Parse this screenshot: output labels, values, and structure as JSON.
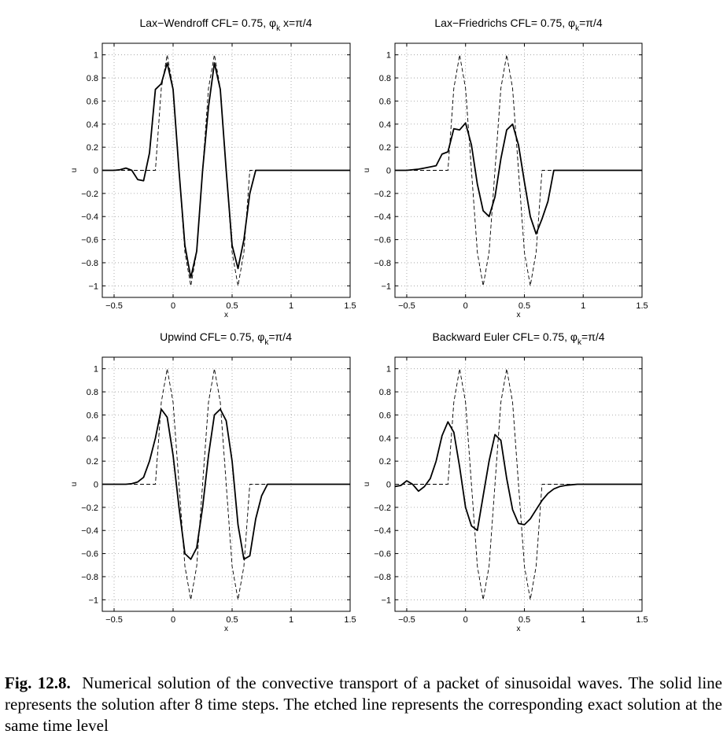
{
  "chart_data": [
    {
      "type": "line",
      "title": "Lax−Wendroff CFL=  0.75, φ",
      "title_sub": "k",
      "title_end": " x=π/4",
      "xlabel": "x",
      "ylabel": "u",
      "xlim": [
        -0.6,
        1.5
      ],
      "ylim": [
        -1.1,
        1.1
      ],
      "xticks": [
        -0.5,
        0,
        0.5,
        1,
        1.5
      ],
      "xtick_labels": [
        "−0.5",
        "0",
        "0.5",
        "1",
        "1.5"
      ],
      "yticks": [
        1,
        0.8,
        0.6,
        0.4,
        0.2,
        0,
        -0.2,
        -0.4,
        -0.6,
        -0.8,
        -1
      ],
      "ytick_labels": [
        "1",
        "0.8",
        "0.6",
        "0.4",
        "0.2",
        "0",
        "−0.2",
        "−0.4",
        "−0.6",
        "−0.8",
        "−1"
      ],
      "grid": true,
      "series": [
        {
          "style": "solid",
          "x": [
            -0.6,
            -0.55,
            -0.5,
            -0.45,
            -0.4,
            -0.35,
            -0.3,
            -0.25,
            -0.2,
            -0.15,
            -0.1,
            -0.05,
            0,
            0.05,
            0.1,
            0.15,
            0.2,
            0.25,
            0.3,
            0.35,
            0.4,
            0.45,
            0.5,
            0.55,
            0.6,
            0.65,
            0.7,
            0.75,
            0.8,
            0.85,
            0.9,
            1.0,
            1.1,
            1.2,
            1.3,
            1.4,
            1.5
          ],
          "y": [
            0,
            0,
            0,
            0.005,
            0.02,
            0,
            -0.08,
            -0.09,
            0.15,
            0.7,
            0.75,
            0.93,
            0.7,
            0,
            -0.65,
            -0.93,
            -0.7,
            0,
            0.55,
            0.93,
            0.7,
            0,
            -0.65,
            -0.85,
            -0.6,
            -0.2,
            0,
            0,
            0,
            0,
            0,
            0,
            0,
            0,
            0,
            0,
            0
          ]
        },
        {
          "style": "dashed",
          "x": [
            -0.6,
            -0.2,
            -0.15,
            -0.1,
            -0.05,
            0,
            0.05,
            0.1,
            0.15,
            0.2,
            0.25,
            0.3,
            0.35,
            0.4,
            0.45,
            0.5,
            0.55,
            0.6,
            0.65,
            0.7,
            0.75,
            0.8,
            1.5
          ],
          "y": [
            0,
            0,
            0,
            0.71,
            1,
            0.71,
            0,
            -0.71,
            -1,
            -0.71,
            0,
            0.71,
            1,
            0.71,
            0,
            -0.71,
            -1,
            -0.71,
            0,
            0,
            0,
            0,
            0
          ]
        }
      ]
    },
    {
      "type": "line",
      "title": "Lax−Friedrichs CFL=  0.75, φ",
      "title_sub": "k",
      "title_end": "=π/4",
      "xlabel": "x",
      "ylabel": "u",
      "xlim": [
        -0.6,
        1.5
      ],
      "ylim": [
        -1.1,
        1.1
      ],
      "xticks": [
        -0.5,
        0,
        0.5,
        1,
        1.5
      ],
      "xtick_labels": [
        "−0.5",
        "0",
        "0.5",
        "1",
        "1.5"
      ],
      "yticks": [
        1,
        0.8,
        0.6,
        0.4,
        0.2,
        0,
        -0.2,
        -0.4,
        -0.6,
        -0.8,
        -1
      ],
      "ytick_labels": [
        "1",
        "0.8",
        "0.6",
        "0.4",
        "0.2",
        "0",
        "−0.2",
        "−0.4",
        "−0.6",
        "−0.8",
        "−1"
      ],
      "grid": true,
      "series": [
        {
          "style": "solid",
          "x": [
            -0.6,
            -0.5,
            -0.4,
            -0.35,
            -0.3,
            -0.25,
            -0.2,
            -0.15,
            -0.1,
            -0.05,
            0,
            0.05,
            0.1,
            0.15,
            0.2,
            0.25,
            0.3,
            0.35,
            0.4,
            0.45,
            0.5,
            0.55,
            0.6,
            0.65,
            0.7,
            0.75,
            0.8,
            0.85,
            0.9,
            1.0,
            1.2,
            1.5
          ],
          "y": [
            0,
            0,
            0.01,
            0.02,
            0.03,
            0.04,
            0.14,
            0.16,
            0.36,
            0.35,
            0.41,
            0.22,
            -0.12,
            -0.35,
            -0.4,
            -0.23,
            0.1,
            0.35,
            0.4,
            0.22,
            -0.1,
            -0.4,
            -0.55,
            -0.42,
            -0.27,
            0,
            0,
            0,
            0,
            0,
            0,
            0
          ]
        },
        {
          "style": "dashed",
          "x": [
            -0.6,
            -0.2,
            -0.15,
            -0.1,
            -0.05,
            0,
            0.05,
            0.1,
            0.15,
            0.2,
            0.25,
            0.3,
            0.35,
            0.4,
            0.45,
            0.5,
            0.55,
            0.6,
            0.65,
            0.7,
            0.75,
            0.8,
            1.5
          ],
          "y": [
            0,
            0,
            0,
            0.71,
            1,
            0.71,
            0,
            -0.71,
            -1,
            -0.71,
            0,
            0.71,
            1,
            0.71,
            0,
            -0.71,
            -1,
            -0.71,
            0,
            0,
            0,
            0,
            0
          ]
        }
      ]
    },
    {
      "type": "line",
      "title": "Upwind CFL=  0.75, φ",
      "title_sub": "k",
      "title_end": "=π/4",
      "xlabel": "x",
      "ylabel": "u",
      "xlim": [
        -0.6,
        1.5
      ],
      "ylim": [
        -1.1,
        1.1
      ],
      "xticks": [
        -0.5,
        0,
        0.5,
        1,
        1.5
      ],
      "xtick_labels": [
        "−0.5",
        "0",
        "0.5",
        "1",
        "1.5"
      ],
      "yticks": [
        1,
        0.8,
        0.6,
        0.4,
        0.2,
        0,
        -0.2,
        -0.4,
        -0.6,
        -0.8,
        -1
      ],
      "ytick_labels": [
        "1",
        "0.8",
        "0.6",
        "0.4",
        "0.2",
        "0",
        "−0.2",
        "−0.4",
        "−0.6",
        "−0.8",
        "−1"
      ],
      "grid": true,
      "series": [
        {
          "style": "solid",
          "x": [
            -0.6,
            -0.4,
            -0.35,
            -0.3,
            -0.25,
            -0.2,
            -0.15,
            -0.1,
            -0.05,
            0,
            0.05,
            0.1,
            0.15,
            0.2,
            0.25,
            0.3,
            0.35,
            0.4,
            0.45,
            0.5,
            0.55,
            0.6,
            0.65,
            0.7,
            0.75,
            0.8,
            0.85,
            0.9,
            1.0,
            1.5
          ],
          "y": [
            0,
            0,
            0.005,
            0.02,
            0.06,
            0.2,
            0.4,
            0.65,
            0.58,
            0.25,
            -0.2,
            -0.6,
            -0.65,
            -0.55,
            -0.2,
            0.25,
            0.6,
            0.65,
            0.55,
            0.2,
            -0.35,
            -0.65,
            -0.62,
            -0.3,
            -0.1,
            0,
            0,
            0,
            0,
            0
          ]
        },
        {
          "style": "dashed",
          "x": [
            -0.6,
            -0.2,
            -0.15,
            -0.1,
            -0.05,
            0,
            0.05,
            0.1,
            0.15,
            0.2,
            0.25,
            0.3,
            0.35,
            0.4,
            0.45,
            0.5,
            0.55,
            0.6,
            0.65,
            0.7,
            0.75,
            0.8,
            1.5
          ],
          "y": [
            0,
            0,
            0,
            0.71,
            1,
            0.71,
            0,
            -0.71,
            -1,
            -0.71,
            0,
            0.71,
            1,
            0.71,
            0,
            -0.71,
            -1,
            -0.71,
            0,
            0,
            0,
            0,
            0
          ]
        }
      ]
    },
    {
      "type": "line",
      "title": "Backward Euler CFL=  0.75, φ",
      "title_sub": "k",
      "title_end": "=π/4",
      "xlabel": "x",
      "ylabel": "u",
      "xlim": [
        -0.6,
        1.5
      ],
      "ylim": [
        -1.1,
        1.1
      ],
      "xticks": [
        -0.5,
        0,
        0.5,
        1,
        1.5
      ],
      "xtick_labels": [
        "−0.5",
        "0",
        "0.5",
        "1",
        "1.5"
      ],
      "yticks": [
        1,
        0.8,
        0.6,
        0.4,
        0.2,
        0,
        -0.2,
        -0.4,
        -0.6,
        -0.8,
        -1
      ],
      "ytick_labels": [
        "1",
        "0.8",
        "0.6",
        "0.4",
        "0.2",
        "0",
        "−0.2",
        "−0.4",
        "−0.6",
        "−0.8",
        "−1"
      ],
      "grid": true,
      "series": [
        {
          "style": "solid",
          "x": [
            -0.6,
            -0.55,
            -0.5,
            -0.45,
            -0.4,
            -0.35,
            -0.3,
            -0.25,
            -0.2,
            -0.15,
            -0.1,
            -0.05,
            0,
            0.05,
            0.1,
            0.15,
            0.2,
            0.25,
            0.3,
            0.35,
            0.4,
            0.45,
            0.5,
            0.55,
            0.6,
            0.65,
            0.7,
            0.75,
            0.8,
            0.85,
            0.9,
            0.95,
            1.0,
            1.05,
            1.1,
            1.2,
            1.3,
            1.5
          ],
          "y": [
            -0.02,
            -0.01,
            0.03,
            0,
            -0.06,
            -0.02,
            0.05,
            0.2,
            0.42,
            0.54,
            0.45,
            0.15,
            -0.2,
            -0.36,
            -0.4,
            -0.1,
            0.2,
            0.43,
            0.38,
            0.05,
            -0.22,
            -0.34,
            -0.35,
            -0.3,
            -0.22,
            -0.14,
            -0.08,
            -0.04,
            -0.02,
            -0.01,
            -0.005,
            0,
            0,
            0,
            0,
            0,
            0,
            0
          ]
        },
        {
          "style": "dashed",
          "x": [
            -0.6,
            -0.2,
            -0.15,
            -0.1,
            -0.05,
            0,
            0.05,
            0.1,
            0.15,
            0.2,
            0.25,
            0.3,
            0.35,
            0.4,
            0.45,
            0.5,
            0.55,
            0.6,
            0.65,
            0.7,
            0.75,
            0.8,
            1.5
          ],
          "y": [
            0,
            0,
            0,
            0.71,
            1,
            0.71,
            0,
            -0.71,
            -1,
            -0.71,
            0,
            0.71,
            1,
            0.71,
            0,
            -0.71,
            -1,
            -0.71,
            0,
            0,
            0,
            0,
            0
          ]
        }
      ]
    }
  ],
  "caption": {
    "label": "Fig. 12.8.",
    "text": "Numerical solution of the convective transport of a packet of sinusoidal waves. The solid line represents the solution after 8 time steps. The etched line represents the corresponding exact solution at the same time level"
  }
}
